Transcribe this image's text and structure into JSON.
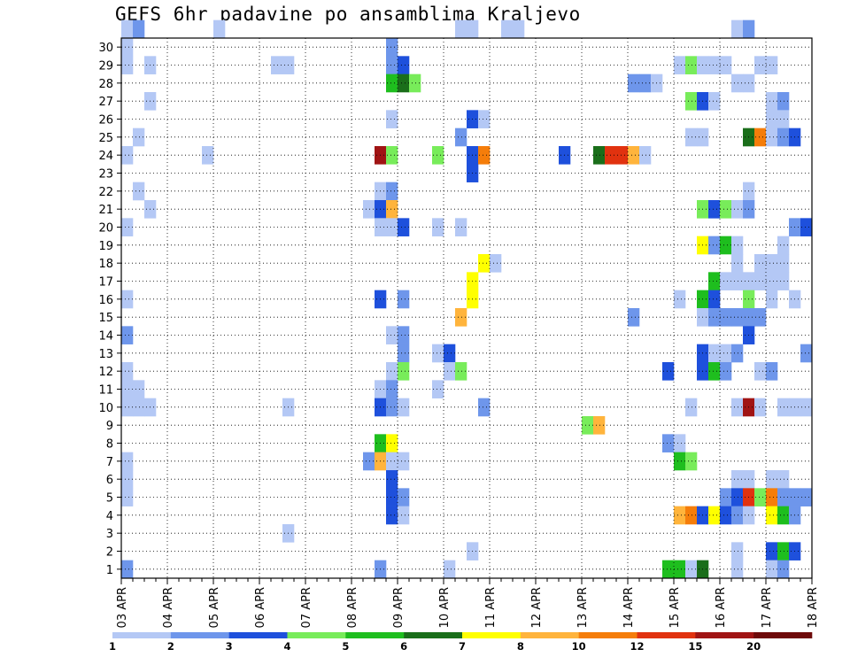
{
  "chart_data": {
    "type": "heatmap",
    "title": "GEFS 6hr padavine po ansamblima Kraljevo",
    "x_tick_labels": [
      "03 APR",
      "04 APR",
      "05 APR",
      "06 APR",
      "07 APR",
      "08 APR",
      "09 APR",
      "10 APR",
      "11 APR",
      "12 APR",
      "13 APR",
      "14 APR",
      "15 APR",
      "16 APR",
      "17 APR",
      "18 APR"
    ],
    "y_tick_labels": [
      "1",
      "2",
      "3",
      "4",
      "5",
      "6",
      "7",
      "8",
      "9",
      "10",
      "11",
      "12",
      "13",
      "14",
      "15",
      "16",
      "17",
      "18",
      "19",
      "20",
      "21",
      "22",
      "23",
      "24",
      "25",
      "26",
      "27",
      "28",
      "29",
      "30"
    ],
    "x_range": [
      0,
      60
    ],
    "y_range": [
      0,
      30
    ],
    "grid": true,
    "colorbar": {
      "labels": [
        "1",
        "2",
        "3",
        "4",
        "5",
        "6",
        "7",
        "8",
        "10",
        "12",
        "15",
        "20"
      ],
      "colors": [
        "#b4c8f5",
        "#6e96eb",
        "#1e50dc",
        "#78ec5a",
        "#1ebe1e",
        "#1a6e1a",
        "#ffff00",
        "#ffb43c",
        "#f57d0a",
        "#e1320f",
        "#a01414",
        "#6e0a0a"
      ]
    },
    "cells": [
      [
        0,
        30,
        1
      ],
      [
        1,
        30,
        2
      ],
      [
        8,
        30,
        1
      ],
      [
        29,
        30,
        1
      ],
      [
        30,
        30,
        1
      ],
      [
        33,
        30,
        1
      ],
      [
        34,
        30,
        1
      ],
      [
        53,
        30,
        1
      ],
      [
        54,
        30,
        2
      ],
      [
        0,
        29,
        1
      ],
      [
        23,
        29,
        2
      ],
      [
        0,
        28,
        1
      ],
      [
        2,
        28,
        1
      ],
      [
        13,
        28,
        1
      ],
      [
        14,
        28,
        1
      ],
      [
        23,
        28,
        2
      ],
      [
        24,
        28,
        3
      ],
      [
        48,
        28,
        1
      ],
      [
        49,
        28,
        4
      ],
      [
        50,
        28,
        1
      ],
      [
        51,
        28,
        1
      ],
      [
        52,
        28,
        1
      ],
      [
        55,
        28,
        1
      ],
      [
        56,
        28,
        1
      ],
      [
        23,
        27,
        5
      ],
      [
        24,
        27,
        6
      ],
      [
        25,
        27,
        4
      ],
      [
        44,
        27,
        2
      ],
      [
        45,
        27,
        2
      ],
      [
        46,
        27,
        1
      ],
      [
        53,
        27,
        1
      ],
      [
        54,
        27,
        1
      ],
      [
        2,
        26,
        1
      ],
      [
        49,
        26,
        4
      ],
      [
        50,
        26,
        3
      ],
      [
        51,
        26,
        1
      ],
      [
        56,
        26,
        1
      ],
      [
        57,
        26,
        2
      ],
      [
        23,
        25,
        1
      ],
      [
        30,
        25,
        3
      ],
      [
        31,
        25,
        1
      ],
      [
        56,
        25,
        1
      ],
      [
        57,
        25,
        1
      ],
      [
        1,
        24,
        1
      ],
      [
        29,
        24,
        2
      ],
      [
        49,
        24,
        1
      ],
      [
        50,
        24,
        1
      ],
      [
        54,
        24,
        6
      ],
      [
        55,
        24,
        9
      ],
      [
        56,
        24,
        1
      ],
      [
        57,
        24,
        2
      ],
      [
        58,
        24,
        3
      ],
      [
        0,
        23,
        1
      ],
      [
        7,
        23,
        1
      ],
      [
        22,
        23,
        11
      ],
      [
        23,
        23,
        4
      ],
      [
        27,
        23,
        4
      ],
      [
        30,
        23,
        3
      ],
      [
        31,
        23,
        9
      ],
      [
        38,
        23,
        3
      ],
      [
        41,
        23,
        6
      ],
      [
        42,
        23,
        10
      ],
      [
        43,
        23,
        10
      ],
      [
        44,
        23,
        8
      ],
      [
        45,
        23,
        1
      ],
      [
        30,
        22,
        3
      ],
      [
        1,
        21,
        1
      ],
      [
        22,
        21,
        1
      ],
      [
        23,
        21,
        2
      ],
      [
        54,
        21,
        1
      ],
      [
        2,
        20,
        1
      ],
      [
        21,
        20,
        1
      ],
      [
        22,
        20,
        3
      ],
      [
        23,
        20,
        8
      ],
      [
        50,
        20,
        4
      ],
      [
        51,
        20,
        3
      ],
      [
        52,
        20,
        4
      ],
      [
        53,
        20,
        1
      ],
      [
        54,
        20,
        2
      ],
      [
        0,
        19,
        1
      ],
      [
        22,
        19,
        1
      ],
      [
        23,
        19,
        1
      ],
      [
        24,
        19,
        3
      ],
      [
        27,
        19,
        1
      ],
      [
        29,
        19,
        1
      ],
      [
        58,
        19,
        2
      ],
      [
        59,
        19,
        3
      ],
      [
        50,
        18,
        7
      ],
      [
        51,
        18,
        2
      ],
      [
        52,
        18,
        5
      ],
      [
        53,
        18,
        1
      ],
      [
        57,
        18,
        1
      ],
      [
        31,
        17,
        7
      ],
      [
        32,
        17,
        1
      ],
      [
        53,
        17,
        1
      ],
      [
        55,
        17,
        1
      ],
      [
        56,
        17,
        1
      ],
      [
        57,
        17,
        1
      ],
      [
        30,
        16,
        7
      ],
      [
        51,
        16,
        5
      ],
      [
        52,
        16,
        1
      ],
      [
        53,
        16,
        1
      ],
      [
        54,
        16,
        1
      ],
      [
        55,
        16,
        1
      ],
      [
        56,
        16,
        1
      ],
      [
        57,
        16,
        1
      ],
      [
        0,
        15,
        1
      ],
      [
        22,
        15,
        3
      ],
      [
        24,
        15,
        2
      ],
      [
        30,
        15,
        7
      ],
      [
        48,
        15,
        1
      ],
      [
        50,
        15,
        5
      ],
      [
        51,
        15,
        3
      ],
      [
        54,
        15,
        4
      ],
      [
        56,
        15,
        1
      ],
      [
        58,
        15,
        1
      ],
      [
        29,
        14,
        8
      ],
      [
        44,
        14,
        2
      ],
      [
        50,
        14,
        1
      ],
      [
        51,
        14,
        2
      ],
      [
        52,
        14,
        2
      ],
      [
        53,
        14,
        2
      ],
      [
        54,
        14,
        2
      ],
      [
        55,
        14,
        2
      ],
      [
        0,
        13,
        2
      ],
      [
        23,
        13,
        1
      ],
      [
        24,
        13,
        2
      ],
      [
        54,
        13,
        3
      ],
      [
        24,
        12,
        2
      ],
      [
        27,
        12,
        1
      ],
      [
        28,
        12,
        3
      ],
      [
        50,
        12,
        3
      ],
      [
        51,
        12,
        1
      ],
      [
        52,
        12,
        1
      ],
      [
        53,
        12,
        2
      ],
      [
        59,
        12,
        2
      ],
      [
        0,
        11,
        1
      ],
      [
        23,
        11,
        1
      ],
      [
        24,
        11,
        4
      ],
      [
        28,
        11,
        1
      ],
      [
        29,
        11,
        4
      ],
      [
        47,
        11,
        3
      ],
      [
        50,
        11,
        3
      ],
      [
        51,
        11,
        5
      ],
      [
        52,
        11,
        2
      ],
      [
        55,
        11,
        1
      ],
      [
        56,
        11,
        2
      ],
      [
        0,
        10,
        1
      ],
      [
        1,
        10,
        1
      ],
      [
        22,
        10,
        1
      ],
      [
        23,
        10,
        2
      ],
      [
        27,
        10,
        1
      ],
      [
        0,
        9,
        1
      ],
      [
        1,
        9,
        1
      ],
      [
        2,
        9,
        1
      ],
      [
        14,
        9,
        1
      ],
      [
        22,
        9,
        3
      ],
      [
        23,
        9,
        2
      ],
      [
        24,
        9,
        1
      ],
      [
        31,
        9,
        2
      ],
      [
        49,
        9,
        1
      ],
      [
        53,
        9,
        1
      ],
      [
        54,
        9,
        11
      ],
      [
        55,
        9,
        1
      ],
      [
        57,
        9,
        1
      ],
      [
        58,
        9,
        1
      ],
      [
        59,
        9,
        1
      ],
      [
        40,
        8,
        4
      ],
      [
        41,
        8,
        8
      ],
      [
        22,
        7,
        5
      ],
      [
        23,
        7,
        7
      ],
      [
        47,
        7,
        2
      ],
      [
        48,
        7,
        1
      ],
      [
        0,
        6,
        1
      ],
      [
        21,
        6,
        2
      ],
      [
        22,
        6,
        8
      ],
      [
        23,
        6,
        1
      ],
      [
        24,
        6,
        1
      ],
      [
        48,
        6,
        5
      ],
      [
        49,
        6,
        4
      ],
      [
        0,
        5,
        1
      ],
      [
        23,
        5,
        3
      ],
      [
        53,
        5,
        1
      ],
      [
        54,
        5,
        1
      ],
      [
        56,
        5,
        1
      ],
      [
        57,
        5,
        1
      ],
      [
        0,
        4,
        1
      ],
      [
        23,
        4,
        3
      ],
      [
        24,
        4,
        2
      ],
      [
        52,
        4,
        2
      ],
      [
        53,
        4,
        3
      ],
      [
        54,
        4,
        10
      ],
      [
        55,
        4,
        4
      ],
      [
        56,
        4,
        9
      ],
      [
        57,
        4,
        2
      ],
      [
        58,
        4,
        2
      ],
      [
        59,
        4,
        2
      ],
      [
        23,
        3,
        3
      ],
      [
        24,
        3,
        1
      ],
      [
        48,
        3,
        8
      ],
      [
        49,
        3,
        9
      ],
      [
        50,
        3,
        3
      ],
      [
        51,
        3,
        7
      ],
      [
        52,
        3,
        3
      ],
      [
        53,
        3,
        2
      ],
      [
        54,
        3,
        1
      ],
      [
        56,
        3,
        7
      ],
      [
        57,
        3,
        5
      ],
      [
        58,
        3,
        2
      ],
      [
        14,
        2,
        1
      ],
      [
        30,
        1,
        1
      ],
      [
        53,
        1,
        1
      ],
      [
        56,
        1,
        3
      ],
      [
        57,
        1,
        5
      ],
      [
        58,
        1,
        3
      ],
      [
        0,
        0,
        2
      ],
      [
        22,
        0,
        2
      ],
      [
        28,
        0,
        1
      ],
      [
        47,
        0,
        5
      ],
      [
        48,
        0,
        5
      ],
      [
        49,
        0,
        1
      ],
      [
        50,
        0,
        6
      ],
      [
        53,
        0,
        1
      ],
      [
        56,
        0,
        1
      ],
      [
        57,
        0,
        2
      ]
    ]
  }
}
